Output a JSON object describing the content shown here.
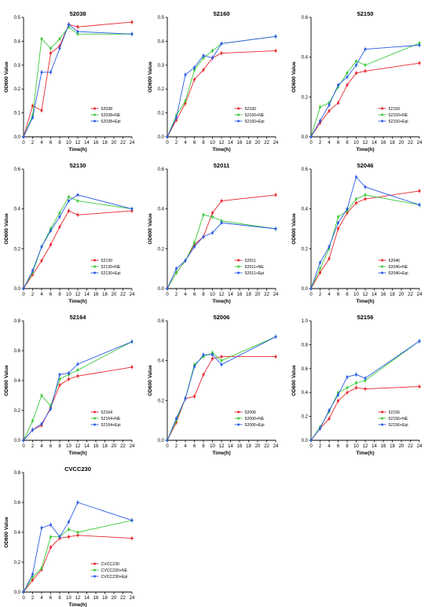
{
  "colors": {
    "control": "#e8252b",
    "ne": "#3ec93a",
    "epi": "#2b5ce6"
  },
  "chart_data": [
    {
      "type": "line",
      "title": "52038",
      "xlabel": "Time(h)",
      "ylabel": "OD600 Value",
      "xlim": [
        0,
        24
      ],
      "ylim": [
        0,
        0.5
      ],
      "xticks": [
        0,
        2,
        4,
        6,
        8,
        10,
        12,
        14,
        16,
        18,
        20,
        22,
        24
      ],
      "yticks": [
        "0.0",
        "0.1",
        "0.2",
        "0.3",
        "0.4",
        "0.5"
      ],
      "legend_position": "lower-right",
      "series": [
        {
          "name": "52038",
          "x": [
            0,
            2,
            4,
            6,
            8,
            10,
            12,
            24
          ],
          "y": [
            0.0,
            0.13,
            0.11,
            0.35,
            0.38,
            0.47,
            0.46,
            0.48
          ]
        },
        {
          "name": "52038+NE",
          "x": [
            0,
            2,
            4,
            6,
            8,
            10,
            12,
            24
          ],
          "y": [
            0.0,
            0.09,
            0.41,
            0.37,
            0.41,
            0.46,
            0.43,
            0.43
          ]
        },
        {
          "name": "52038+Epi",
          "x": [
            0,
            2,
            4,
            6,
            8,
            10,
            12,
            24
          ],
          "y": [
            0.0,
            0.08,
            0.27,
            0.27,
            0.37,
            0.47,
            0.44,
            0.43
          ]
        }
      ]
    },
    {
      "type": "line",
      "title": "52160",
      "xlabel": "Time(h)",
      "ylabel": "OD600 Value",
      "xlim": [
        0,
        24
      ],
      "ylim": [
        0,
        0.5
      ],
      "xticks": [
        0,
        2,
        4,
        6,
        8,
        10,
        12,
        14,
        16,
        18,
        20,
        22,
        24
      ],
      "yticks": [
        "0.0",
        "0.1",
        "0.2",
        "0.3",
        "0.4",
        "0.5"
      ],
      "legend_position": "lower-right",
      "series": [
        {
          "name": "52160",
          "x": [
            0,
            2,
            4,
            6,
            8,
            10,
            12,
            24
          ],
          "y": [
            0.0,
            0.07,
            0.14,
            0.24,
            0.28,
            0.33,
            0.35,
            0.36
          ]
        },
        {
          "name": "52160+NE",
          "x": [
            0,
            2,
            4,
            6,
            8,
            10,
            12,
            24
          ],
          "y": [
            0.0,
            0.09,
            0.15,
            0.28,
            0.33,
            0.36,
            0.39,
            0.42
          ]
        },
        {
          "name": "52160+Epi",
          "x": [
            0,
            2,
            4,
            6,
            8,
            10,
            12,
            24
          ],
          "y": [
            0.0,
            0.08,
            0.26,
            0.29,
            0.34,
            0.33,
            0.39,
            0.42
          ]
        }
      ]
    },
    {
      "type": "line",
      "title": "52150",
      "xlabel": "Time(h)",
      "ylabel": "OD600 Value",
      "xlim": [
        0,
        24
      ],
      "ylim": [
        0,
        0.6
      ],
      "xticks": [
        0,
        2,
        4,
        6,
        8,
        10,
        12,
        14,
        16,
        18,
        20,
        22,
        24
      ],
      "yticks": [
        "0.0",
        "0.2",
        "0.4",
        "0.6"
      ],
      "legend_position": "lower-right",
      "series": [
        {
          "name": "52150",
          "x": [
            0,
            2,
            4,
            6,
            8,
            10,
            12,
            24
          ],
          "y": [
            0.0,
            0.07,
            0.13,
            0.17,
            0.26,
            0.32,
            0.33,
            0.37
          ]
        },
        {
          "name": "52150+NE",
          "x": [
            0,
            2,
            4,
            6,
            8,
            10,
            12,
            24
          ],
          "y": [
            0.0,
            0.15,
            0.17,
            0.25,
            0.32,
            0.38,
            0.36,
            0.47
          ]
        },
        {
          "name": "52150+Epi",
          "x": [
            0,
            2,
            4,
            6,
            8,
            10,
            12,
            24
          ],
          "y": [
            0.0,
            0.08,
            0.16,
            0.26,
            0.3,
            0.36,
            0.44,
            0.46
          ]
        }
      ]
    },
    {
      "type": "line",
      "title": "52130",
      "xlabel": "Time(h)",
      "ylabel": "OD600 Value",
      "xlim": [
        0,
        24
      ],
      "ylim": [
        0,
        0.6
      ],
      "xticks": [
        0,
        2,
        4,
        6,
        8,
        10,
        12,
        14,
        16,
        18,
        20,
        22,
        24
      ],
      "yticks": [
        "0.0",
        "0.2",
        "0.4",
        "0.6"
      ],
      "legend_position": "lower-right",
      "series": [
        {
          "name": "52130",
          "x": [
            0,
            2,
            4,
            6,
            8,
            10,
            12,
            24
          ],
          "y": [
            0.0,
            0.07,
            0.14,
            0.22,
            0.31,
            0.39,
            0.37,
            0.39
          ]
        },
        {
          "name": "52130+NE",
          "x": [
            0,
            2,
            4,
            6,
            8,
            10,
            12,
            24
          ],
          "y": [
            0.0,
            0.08,
            0.21,
            0.3,
            0.38,
            0.46,
            0.44,
            0.4
          ]
        },
        {
          "name": "52130+Epi",
          "x": [
            0,
            2,
            4,
            6,
            8,
            10,
            12,
            24
          ],
          "y": [
            0.0,
            0.09,
            0.21,
            0.29,
            0.36,
            0.44,
            0.47,
            0.4
          ]
        }
      ]
    },
    {
      "type": "line",
      "title": "52011",
      "xlabel": "Time(h)",
      "ylabel": "OD600 Value",
      "xlim": [
        0,
        24
      ],
      "ylim": [
        0,
        0.6
      ],
      "xticks": [
        0,
        2,
        4,
        6,
        8,
        10,
        12,
        14,
        16,
        18,
        20,
        22,
        24
      ],
      "yticks": [
        "0.0",
        "0.2",
        "0.4",
        "0.6"
      ],
      "legend_position": "lower-right",
      "series": [
        {
          "name": "52011",
          "x": [
            0,
            2,
            4,
            6,
            8,
            10,
            12,
            24
          ],
          "y": [
            0.0,
            0.08,
            0.14,
            0.22,
            0.26,
            0.38,
            0.44,
            0.47
          ]
        },
        {
          "name": "52011+NE",
          "x": [
            0,
            2,
            4,
            6,
            8,
            10,
            12,
            24
          ],
          "y": [
            0.0,
            0.08,
            0.14,
            0.23,
            0.37,
            0.36,
            0.34,
            0.3
          ]
        },
        {
          "name": "52011+Epi",
          "x": [
            0,
            2,
            4,
            6,
            8,
            10,
            12,
            24
          ],
          "y": [
            0.0,
            0.1,
            0.14,
            0.21,
            0.26,
            0.28,
            0.33,
            0.3
          ]
        }
      ]
    },
    {
      "type": "line",
      "title": "52046",
      "xlabel": "Time(h)",
      "ylabel": "OD600 Value",
      "xlim": [
        0,
        24
      ],
      "ylim": [
        0,
        0.6
      ],
      "xticks": [
        0,
        2,
        4,
        6,
        8,
        10,
        12,
        14,
        16,
        18,
        20,
        22,
        24
      ],
      "yticks": [
        "0.0",
        "0.2",
        "0.4",
        "0.6"
      ],
      "legend_position": "lower-right",
      "series": [
        {
          "name": "52046",
          "x": [
            0,
            2,
            4,
            6,
            8,
            10,
            12,
            24
          ],
          "y": [
            0.0,
            0.08,
            0.15,
            0.3,
            0.38,
            0.43,
            0.45,
            0.49
          ]
        },
        {
          "name": "52046+NE",
          "x": [
            0,
            2,
            4,
            6,
            8,
            10,
            12,
            24
          ],
          "y": [
            0.0,
            0.1,
            0.2,
            0.36,
            0.39,
            0.45,
            0.47,
            0.42
          ]
        },
        {
          "name": "52046+Epi",
          "x": [
            0,
            2,
            4,
            6,
            8,
            10,
            12,
            24
          ],
          "y": [
            0.0,
            0.13,
            0.21,
            0.33,
            0.4,
            0.56,
            0.51,
            0.42
          ]
        }
      ]
    },
    {
      "type": "line",
      "title": "52164",
      "xlabel": "Time(h)",
      "ylabel": "OD600 Value",
      "xlim": [
        0,
        24
      ],
      "ylim": [
        0,
        0.8
      ],
      "xticks": [
        0,
        2,
        4,
        6,
        8,
        10,
        12,
        14,
        16,
        18,
        20,
        22,
        24
      ],
      "yticks": [
        "0.0",
        "0.2",
        "0.4",
        "0.6",
        "0.8"
      ],
      "legend_position": "lower-right",
      "series": [
        {
          "name": "52164",
          "x": [
            0,
            2,
            4,
            6,
            8,
            10,
            12,
            24
          ],
          "y": [
            0.0,
            0.07,
            0.1,
            0.22,
            0.37,
            0.41,
            0.43,
            0.49
          ]
        },
        {
          "name": "52164+NE",
          "x": [
            0,
            2,
            4,
            6,
            8,
            10,
            12,
            24
          ],
          "y": [
            0.0,
            0.13,
            0.3,
            0.23,
            0.41,
            0.44,
            0.47,
            0.66
          ]
        },
        {
          "name": "52164+Epi",
          "x": [
            0,
            2,
            4,
            6,
            8,
            10,
            12,
            24
          ],
          "y": [
            0.0,
            0.07,
            0.11,
            0.21,
            0.44,
            0.45,
            0.51,
            0.66
          ]
        }
      ]
    },
    {
      "type": "line",
      "title": "52006",
      "xlabel": "Time(h)",
      "ylabel": "OD600 Value",
      "xlim": [
        0,
        24
      ],
      "ylim": [
        0,
        0.6
      ],
      "xticks": [
        0,
        2,
        4,
        6,
        8,
        10,
        12,
        14,
        16,
        18,
        20,
        22,
        24
      ],
      "yticks": [
        "0.0",
        "0.2",
        "0.4",
        "0.6"
      ],
      "legend_position": "lower-right",
      "series": [
        {
          "name": "52006",
          "x": [
            0,
            2,
            4,
            6,
            8,
            10,
            12,
            24
          ],
          "y": [
            0.0,
            0.09,
            0.21,
            0.22,
            0.33,
            0.41,
            0.42,
            0.42
          ]
        },
        {
          "name": "52006+NE",
          "x": [
            0,
            2,
            4,
            6,
            8,
            10,
            12,
            24
          ],
          "y": [
            0.0,
            0.1,
            0.21,
            0.38,
            0.42,
            0.44,
            0.4,
            0.52
          ]
        },
        {
          "name": "52006+Epi",
          "x": [
            0,
            2,
            4,
            6,
            8,
            10,
            12,
            24
          ],
          "y": [
            0.0,
            0.11,
            0.21,
            0.37,
            0.43,
            0.43,
            0.38,
            0.52
          ]
        }
      ]
    },
    {
      "type": "line",
      "title": "52156",
      "xlabel": "Time(h)",
      "ylabel": "OD600 Value",
      "xlim": [
        0,
        24
      ],
      "ylim": [
        0,
        1.0
      ],
      "xticks": [
        0,
        2,
        4,
        6,
        8,
        10,
        12,
        14,
        16,
        18,
        20,
        22,
        24
      ],
      "yticks": [
        "0.0",
        "0.2",
        "0.4",
        "0.6",
        "0.8",
        "1.0"
      ],
      "legend_position": "lower-right",
      "series": [
        {
          "name": "52156",
          "x": [
            0,
            2,
            4,
            6,
            8,
            10,
            12,
            24
          ],
          "y": [
            0.0,
            0.1,
            0.18,
            0.33,
            0.4,
            0.44,
            0.43,
            0.45
          ]
        },
        {
          "name": "52156+NE",
          "x": [
            0,
            2,
            4,
            6,
            8,
            10,
            12,
            24
          ],
          "y": [
            0.0,
            0.11,
            0.24,
            0.4,
            0.44,
            0.48,
            0.5,
            0.83
          ]
        },
        {
          "name": "52156+Epi",
          "x": [
            0,
            2,
            4,
            6,
            8,
            10,
            12,
            24
          ],
          "y": [
            0.0,
            0.1,
            0.25,
            0.38,
            0.53,
            0.55,
            0.52,
            0.83
          ]
        }
      ]
    },
    {
      "type": "line",
      "title": "CVCC230",
      "xlabel": "Time(h)",
      "ylabel": "OD600 Value",
      "xlim": [
        0,
        24
      ],
      "ylim": [
        0,
        0.8
      ],
      "xticks": [
        0,
        2,
        4,
        6,
        8,
        10,
        12,
        14,
        16,
        18,
        20,
        22,
        24
      ],
      "yticks": [
        "0.0",
        "0.2",
        "0.4",
        "0.6",
        "0.8"
      ],
      "legend_position": "lower-right",
      "series": [
        {
          "name": "CVCC230",
          "x": [
            0,
            2,
            4,
            6,
            8,
            10,
            12,
            24
          ],
          "y": [
            0.0,
            0.08,
            0.15,
            0.3,
            0.36,
            0.37,
            0.38,
            0.36
          ]
        },
        {
          "name": "CVCC230+NE",
          "x": [
            0,
            2,
            4,
            6,
            8,
            10,
            12,
            24
          ],
          "y": [
            0.0,
            0.1,
            0.16,
            0.37,
            0.37,
            0.42,
            0.4,
            0.48
          ]
        },
        {
          "name": "CVCC230+Epi",
          "x": [
            0,
            2,
            4,
            6,
            8,
            10,
            12,
            24
          ],
          "y": [
            0.0,
            0.12,
            0.43,
            0.45,
            0.37,
            0.47,
            0.6,
            0.48
          ]
        }
      ]
    }
  ]
}
